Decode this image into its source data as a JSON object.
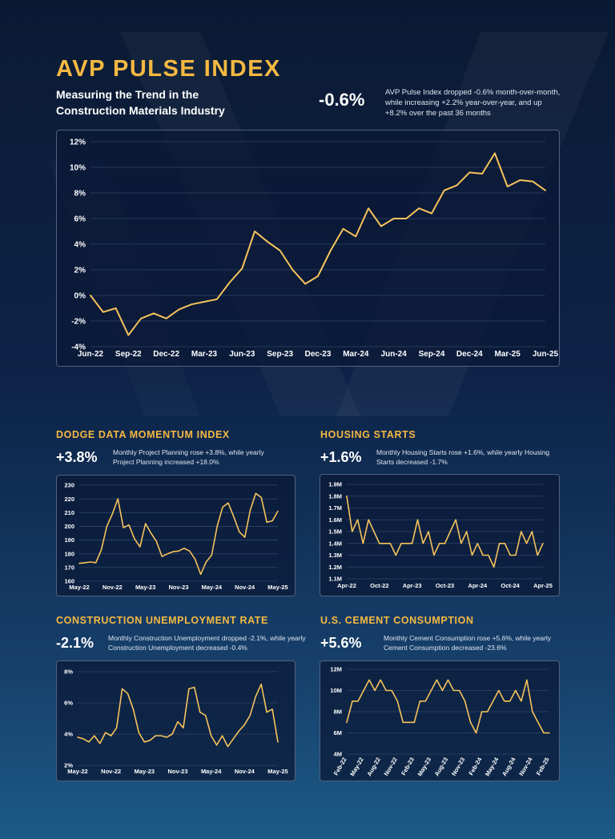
{
  "header": {
    "title": "AVP PULSE INDEX",
    "subtitle": "Measuring the Trend in the Construction Materials Industry",
    "value": "-0.6%",
    "description": "AVP Pulse Index dropped -0.6% month-over-month, while increasing +2.2% year-over-year, and up +8.2% over the past 36 months"
  },
  "colors": {
    "accent": "#f5b942",
    "line": "#f7c35c",
    "grid": "#2f4466",
    "panel_border": "#50627f"
  },
  "sections": {
    "dodge": {
      "title": "DODGE DATA MOMENTUM INDEX",
      "value": "+3.8%",
      "description": "Monthly Project Planning rose +3.8%, while yearly Project Planning increased +18.0%"
    },
    "housing": {
      "title": "HOUSING STARTS",
      "value": "+1.6%",
      "description": "Monthly Housing Starts rose +1.6%, while yearly Housing Starts decreased -1.7%"
    },
    "unemployment": {
      "title": "CONSTRUCTION UNEMPLOYMENT RATE",
      "value": "-2.1%",
      "description": "Monthly Construction Unemployment dropped -2.1%, while yearly Construction Unemployment decreased -0.4%"
    },
    "cement": {
      "title": "U.S. CEMENT CONSUMPTION",
      "value": "+5.6%",
      "description": "Monthly Cement Consumption rose +5.6%, while yearly Cement Consumption decreased -23.6%"
    }
  },
  "chart_data": [
    {
      "id": "pulse",
      "type": "line",
      "title": "AVP PULSE INDEX",
      "ylim": [
        -4,
        12
      ],
      "yticks": [
        -4,
        -2,
        0,
        2,
        4,
        6,
        8,
        10,
        12
      ],
      "ytick_labels": [
        "-4%",
        "-2%",
        "0%",
        "2%",
        "4%",
        "6%",
        "8%",
        "10%",
        "12%"
      ],
      "xtick_labels": [
        "Jun-22",
        "Sep-22",
        "Dec-22",
        "Mar-23",
        "Jun-23",
        "Sep-23",
        "Dec-23",
        "Mar-24",
        "Jun-24",
        "Sep-24",
        "Dec-24",
        "Mar-25",
        "Jun-25"
      ],
      "values": [
        0.0,
        -1.3,
        -1.0,
        -3.1,
        -1.8,
        -1.4,
        -1.8,
        -1.1,
        -0.7,
        -0.5,
        -0.3,
        1.0,
        2.1,
        5.0,
        4.2,
        3.5,
        2.0,
        0.9,
        1.5,
        3.5,
        5.2,
        4.6,
        6.8,
        5.4,
        6.0,
        6.0,
        6.8,
        6.4,
        8.2,
        8.6,
        9.6,
        9.5,
        11.1,
        8.5,
        9.0,
        8.9,
        8.2
      ]
    },
    {
      "id": "dodge",
      "type": "line",
      "title": "DODGE DATA MOMENTUM INDEX",
      "ylim": [
        160,
        230
      ],
      "yticks": [
        160,
        170,
        180,
        190,
        200,
        210,
        220,
        230
      ],
      "ytick_labels": [
        "160",
        "170",
        "180",
        "190",
        "200",
        "210",
        "220",
        "230"
      ],
      "xtick_labels": [
        "May-22",
        "Nov-22",
        "May-23",
        "Nov-23",
        "May-24",
        "Nov-24",
        "May-25"
      ],
      "values": [
        173,
        173.5,
        174,
        173.5,
        183,
        200,
        209,
        220,
        199,
        201,
        191,
        185,
        202,
        195,
        189,
        178,
        180,
        181.5,
        182,
        184,
        182,
        176,
        165,
        174,
        179,
        200,
        214,
        217,
        207,
        196,
        192,
        212,
        224,
        221,
        203,
        204,
        211
      ]
    },
    {
      "id": "housing",
      "type": "line",
      "title": "HOUSING STARTS",
      "ylim": [
        1.1,
        1.9
      ],
      "yticks": [
        1.1,
        1.2,
        1.3,
        1.4,
        1.5,
        1.6,
        1.7,
        1.8,
        1.9
      ],
      "ytick_labels": [
        "1.1M",
        "1.2M",
        "1.3M",
        "1.4M",
        "1.5M",
        "1.6M",
        "1.7M",
        "1.8M",
        "1.9M"
      ],
      "xtick_labels": [
        "Apr-22",
        "Oct-22",
        "Apr-23",
        "Oct-23",
        "Apr-24",
        "Oct-24",
        "Apr-25"
      ],
      "values": [
        1.8,
        1.5,
        1.6,
        1.4,
        1.6,
        1.5,
        1.4,
        1.4,
        1.4,
        1.3,
        1.4,
        1.4,
        1.4,
        1.6,
        1.4,
        1.5,
        1.3,
        1.4,
        1.4,
        1.5,
        1.6,
        1.4,
        1.5,
        1.3,
        1.4,
        1.3,
        1.3,
        1.2,
        1.4,
        1.4,
        1.3,
        1.3,
        1.5,
        1.4,
        1.5,
        1.3,
        1.4
      ]
    },
    {
      "id": "unemployment",
      "type": "line",
      "title": "CONSTRUCTION UNEMPLOYMENT RATE",
      "ylim": [
        2,
        8
      ],
      "yticks": [
        2,
        4,
        6,
        8
      ],
      "ytick_labels": [
        "2%",
        "4%",
        "6%",
        "8%"
      ],
      "xtick_labels": [
        "May-22",
        "Nov-22",
        "May-23",
        "Nov-23",
        "May-24",
        "Nov-24",
        "May-25"
      ],
      "values": [
        3.8,
        3.7,
        3.5,
        3.9,
        3.4,
        4.1,
        3.9,
        4.4,
        6.9,
        6.6,
        5.6,
        4.1,
        3.5,
        3.6,
        3.9,
        3.9,
        3.8,
        4.0,
        4.8,
        4.4,
        6.9,
        7.0,
        5.4,
        5.2,
        3.9,
        3.3,
        3.9,
        3.2,
        3.7,
        4.2,
        4.6,
        5.2,
        6.4,
        7.2,
        5.4,
        5.6,
        3.5
      ]
    },
    {
      "id": "cement",
      "type": "line",
      "title": "U.S. CEMENT CONSUMPTION",
      "ylim": [
        4,
        12
      ],
      "yticks": [
        4,
        6,
        8,
        10,
        12
      ],
      "ytick_labels": [
        "4M",
        "6M",
        "8M",
        "10M",
        "12M"
      ],
      "xtick_labels": [
        "Feb-22",
        "May-22",
        "Aug-22",
        "Nov-22",
        "Feb-23",
        "May-23",
        "Aug-23",
        "Nov-23",
        "Feb-24",
        "May-24",
        "Aug-24",
        "Nov-24",
        "Feb-25"
      ],
      "values": [
        7,
        9,
        9,
        10,
        11,
        10,
        11,
        10,
        10,
        9,
        7,
        7,
        7,
        9,
        9,
        10,
        11,
        10,
        11,
        10,
        10,
        9,
        7,
        6,
        8,
        8,
        9,
        10,
        9,
        9,
        10,
        9,
        11,
        8,
        7,
        6,
        6
      ]
    }
  ]
}
